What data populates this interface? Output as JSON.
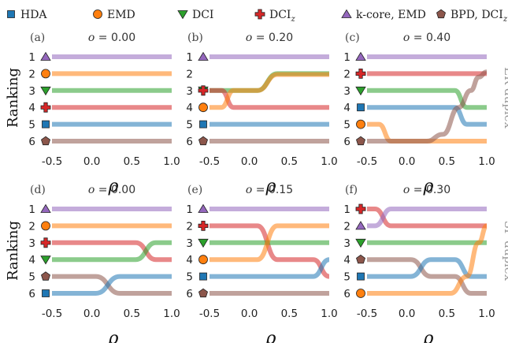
{
  "legend": [
    {
      "id": "hda",
      "label": "HDA",
      "marker": "square",
      "color": "#1f77b4"
    },
    {
      "id": "emd",
      "label": "EMD",
      "marker": "circle",
      "color": "#ff7f0e"
    },
    {
      "id": "dci",
      "label": "DCI",
      "marker": "triangle-down",
      "color": "#2ca02c"
    },
    {
      "id": "dciz",
      "label": "DCI",
      "sub": "z",
      "marker": "plus",
      "color": "#d62728"
    },
    {
      "id": "kcore",
      "label": "k-core, EMD",
      "marker": "triangle-up",
      "color": "#9467bd"
    },
    {
      "id": "bpd",
      "label": "BPD, DCI",
      "sub": "z",
      "marker": "pentagon",
      "color": "#8c564b"
    }
  ],
  "ylabel": "Ranking",
  "xlabel": "ρ",
  "row_labels": [
    "ER duplex",
    "SF duplex"
  ],
  "ranks": [
    "1",
    "2",
    "3",
    "4",
    "5",
    "6"
  ],
  "xticks": [
    "-0.5",
    "0.0",
    "0.5",
    "1.0"
  ],
  "chart_data": [
    {
      "type": "line",
      "panel": "(a)",
      "title_prefix": "o",
      "title_value": "= 0.00",
      "xlim": [
        -0.5,
        1.0
      ],
      "ylim": [
        1,
        6
      ],
      "series": [
        {
          "id": "kcore",
          "points": [
            [
              -0.5,
              1
            ],
            [
              1.0,
              1
            ]
          ]
        },
        {
          "id": "emd",
          "points": [
            [
              -0.5,
              2
            ],
            [
              1.0,
              2
            ]
          ]
        },
        {
          "id": "dci",
          "points": [
            [
              -0.5,
              3
            ],
            [
              1.0,
              3
            ]
          ]
        },
        {
          "id": "dciz",
          "points": [
            [
              -0.5,
              4
            ],
            [
              1.0,
              4
            ]
          ]
        },
        {
          "id": "hda",
          "points": [
            [
              -0.5,
              5
            ],
            [
              1.0,
              5
            ]
          ]
        },
        {
          "id": "bpd",
          "points": [
            [
              -0.5,
              6
            ],
            [
              1.0,
              6
            ]
          ]
        }
      ]
    },
    {
      "type": "line",
      "panel": "(b)",
      "title_prefix": "o",
      "title_value": "= 0.20",
      "xlim": [
        -0.5,
        1.0
      ],
      "ylim": [
        1,
        6
      ],
      "series": [
        {
          "id": "kcore",
          "points": [
            [
              -0.5,
              1
            ],
            [
              1.0,
              1
            ]
          ]
        },
        {
          "id": "dci",
          "points": [
            [
              -0.5,
              3
            ],
            [
              0.1,
              3
            ],
            [
              0.35,
              2
            ],
            [
              1.0,
              2
            ]
          ]
        },
        {
          "id": "dciz",
          "points": [
            [
              -0.5,
              3
            ],
            [
              -0.35,
              3
            ],
            [
              -0.2,
              4
            ],
            [
              1.0,
              4
            ]
          ]
        },
        {
          "id": "emd",
          "points": [
            [
              -0.5,
              4
            ],
            [
              -0.35,
              4
            ],
            [
              -0.2,
              3
            ],
            [
              0.1,
              3
            ],
            [
              0.35,
              2.05
            ],
            [
              1.0,
              2.05
            ]
          ]
        },
        {
          "id": "hda",
          "points": [
            [
              -0.5,
              5
            ],
            [
              1.0,
              5
            ]
          ]
        },
        {
          "id": "bpd",
          "points": [
            [
              -0.5,
              6
            ],
            [
              1.0,
              6
            ]
          ]
        }
      ]
    },
    {
      "type": "line",
      "panel": "(c)",
      "title_prefix": "o",
      "title_value": "= 0.40",
      "xlim": [
        -0.5,
        1.0
      ],
      "ylim": [
        1,
        6
      ],
      "series": [
        {
          "id": "kcore",
          "points": [
            [
              -0.5,
              1
            ],
            [
              1.0,
              1
            ]
          ]
        },
        {
          "id": "dciz",
          "points": [
            [
              -0.5,
              2
            ],
            [
              1.0,
              2
            ]
          ]
        },
        {
          "id": "dci",
          "points": [
            [
              -0.5,
              3
            ],
            [
              0.6,
              3
            ],
            [
              0.75,
              4
            ],
            [
              1.0,
              4
            ]
          ]
        },
        {
          "id": "hda",
          "points": [
            [
              -0.5,
              4
            ],
            [
              0.6,
              4
            ],
            [
              0.75,
              5
            ],
            [
              1.0,
              5
            ]
          ]
        },
        {
          "id": "emd",
          "points": [
            [
              -0.5,
              5
            ],
            [
              -0.35,
              5
            ],
            [
              -0.2,
              6
            ],
            [
              1.0,
              6
            ]
          ]
        },
        {
          "id": "bpd",
          "points": [
            [
              -0.5,
              6
            ],
            [
              0.25,
              6
            ],
            [
              0.45,
              5.6
            ],
            [
              0.65,
              4
            ],
            [
              0.8,
              3
            ],
            [
              0.9,
              2.2
            ],
            [
              1.0,
              1.9
            ]
          ]
        }
      ]
    },
    {
      "type": "line",
      "panel": "(d)",
      "title_prefix": "o",
      "title_value": "= 0.00",
      "xlim": [
        -0.5,
        1.0
      ],
      "ylim": [
        1,
        6
      ],
      "series": [
        {
          "id": "kcore",
          "points": [
            [
              -0.5,
              1
            ],
            [
              1.0,
              1
            ]
          ]
        },
        {
          "id": "emd",
          "points": [
            [
              -0.5,
              2
            ],
            [
              1.0,
              2
            ]
          ]
        },
        {
          "id": "dciz",
          "points": [
            [
              -0.5,
              3
            ],
            [
              0.55,
              3
            ],
            [
              0.8,
              4
            ],
            [
              1.0,
              4
            ]
          ]
        },
        {
          "id": "dci",
          "points": [
            [
              -0.5,
              4
            ],
            [
              0.55,
              4
            ],
            [
              0.8,
              3
            ],
            [
              1.0,
              3
            ]
          ]
        },
        {
          "id": "bpd",
          "points": [
            [
              -0.5,
              5
            ],
            [
              0.05,
              5
            ],
            [
              0.35,
              6
            ],
            [
              1.0,
              6
            ]
          ]
        },
        {
          "id": "hda",
          "points": [
            [
              -0.5,
              6
            ],
            [
              0.05,
              6
            ],
            [
              0.35,
              5
            ],
            [
              1.0,
              5
            ]
          ]
        }
      ]
    },
    {
      "type": "line",
      "panel": "(e)",
      "title_prefix": "o",
      "title_value": "= 0.15",
      "xlim": [
        -0.5,
        1.0
      ],
      "ylim": [
        1,
        6
      ],
      "series": [
        {
          "id": "kcore",
          "points": [
            [
              -0.5,
              1
            ],
            [
              1.0,
              1
            ]
          ]
        },
        {
          "id": "dciz",
          "points": [
            [
              -0.5,
              2
            ],
            [
              0.1,
              2
            ],
            [
              0.35,
              4
            ],
            [
              0.8,
              4
            ],
            [
              1.0,
              5
            ]
          ]
        },
        {
          "id": "dci",
          "points": [
            [
              -0.5,
              3
            ],
            [
              1.0,
              3
            ]
          ]
        },
        {
          "id": "emd",
          "points": [
            [
              -0.5,
              4
            ],
            [
              0.1,
              4
            ],
            [
              0.35,
              2
            ],
            [
              1.0,
              2
            ]
          ]
        },
        {
          "id": "hda",
          "points": [
            [
              -0.5,
              5
            ],
            [
              0.8,
              5
            ],
            [
              1.0,
              4
            ]
          ]
        },
        {
          "id": "bpd",
          "points": [
            [
              -0.5,
              6
            ],
            [
              1.0,
              6
            ]
          ]
        }
      ]
    },
    {
      "type": "line",
      "panel": "(f)",
      "title_prefix": "o",
      "title_value": "= 0.30",
      "xlim": [
        -0.5,
        1.0
      ],
      "ylim": [
        1,
        6
      ],
      "series": [
        {
          "id": "dciz",
          "points": [
            [
              -0.5,
              1
            ],
            [
              -0.4,
              1
            ],
            [
              -0.2,
              2
            ],
            [
              1.0,
              2
            ]
          ]
        },
        {
          "id": "kcore",
          "points": [
            [
              -0.5,
              2
            ],
            [
              -0.4,
              2
            ],
            [
              -0.2,
              1
            ],
            [
              1.0,
              1
            ]
          ]
        },
        {
          "id": "dci",
          "points": [
            [
              -0.5,
              3
            ],
            [
              1.0,
              3
            ]
          ]
        },
        {
          "id": "bpd",
          "points": [
            [
              -0.5,
              4
            ],
            [
              0.05,
              4
            ],
            [
              0.3,
              5
            ],
            [
              0.6,
              5
            ],
            [
              0.8,
              6
            ],
            [
              1.0,
              6
            ]
          ]
        },
        {
          "id": "hda",
          "points": [
            [
              -0.5,
              5
            ],
            [
              0.05,
              5
            ],
            [
              0.3,
              4
            ],
            [
              0.6,
              4
            ],
            [
              0.8,
              5
            ],
            [
              1.0,
              5
            ]
          ]
        },
        {
          "id": "emd",
          "points": [
            [
              -0.5,
              6
            ],
            [
              0.55,
              6
            ],
            [
              0.75,
              5
            ],
            [
              0.9,
              3
            ],
            [
              1.0,
              2
            ]
          ]
        }
      ]
    }
  ]
}
